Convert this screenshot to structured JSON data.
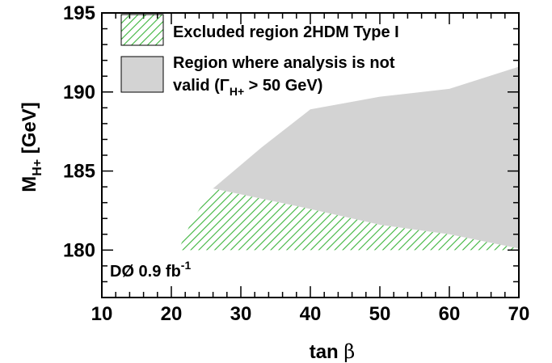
{
  "chart_data": {
    "type": "area",
    "xlabel": "tan β",
    "ylabel": "M_H+ [GeV]",
    "xlim": [
      10,
      70
    ],
    "ylim": [
      177,
      195
    ],
    "xticks": [
      "10",
      "20",
      "30",
      "40",
      "50",
      "60",
      "70"
    ],
    "yticks": [
      "180",
      "185",
      "190",
      "195"
    ],
    "experiment_label": "DØ 0.9 fb",
    "experiment_label_sup": "-1",
    "colors": {
      "excluded_hatch": "#3cb43c",
      "invalid_fill": "#d3d3d3",
      "frame": "#000000"
    },
    "series": [
      {
        "name": "Excluded region 2HDM Type I",
        "style": "hatched",
        "polygon": [
          [
            21,
            180
          ],
          [
            23,
            181.9
          ],
          [
            26,
            183.9
          ],
          [
            40,
            182.6
          ],
          [
            50,
            181.6
          ],
          [
            60,
            181.0
          ],
          [
            70,
            180.1
          ],
          [
            70,
            180
          ]
        ]
      },
      {
        "name": "Region where analysis is not valid (Γ_H+ > 50 GeV)",
        "style": "filled",
        "polygon": [
          [
            26,
            183.9
          ],
          [
            33,
            186.5
          ],
          [
            40,
            188.9
          ],
          [
            50,
            189.7
          ],
          [
            60,
            190.2
          ],
          [
            70,
            191.6
          ],
          [
            70,
            180.1
          ],
          [
            60,
            181.0
          ],
          [
            50,
            181.6
          ],
          [
            40,
            182.6
          ]
        ]
      }
    ],
    "legend": {
      "placement": "top",
      "entries": [
        {
          "line1": "Excluded region 2HDM Type I",
          "line2": ""
        },
        {
          "line1": "Region where analysis is not",
          "line2_prefix": "valid (Γ",
          "line2_sub": "H+",
          "line2_suffix": " > 50 GeV)"
        }
      ]
    },
    "ylabel_parts": {
      "main": "M",
      "sub": "H+",
      "rest": " [GeV]"
    },
    "xlabel_parts": {
      "main": "tan ",
      "greek": "β"
    }
  }
}
